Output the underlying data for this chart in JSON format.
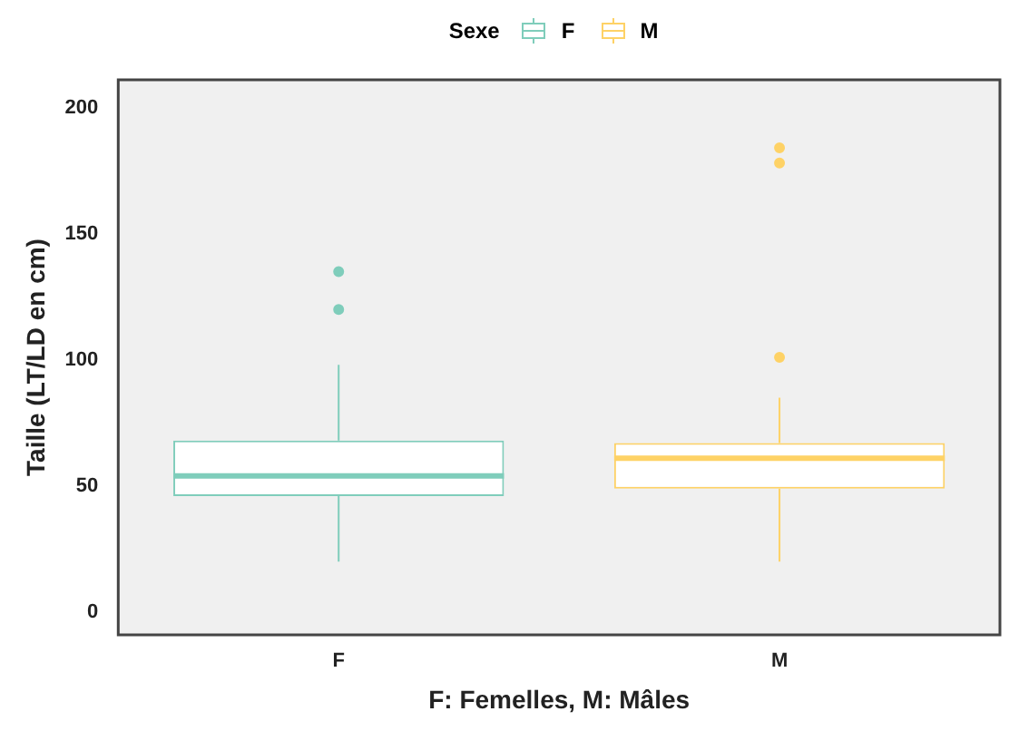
{
  "chart_data": {
    "type": "box",
    "xlabel": "F: Femelles, M: Mâles",
    "ylabel": "Taille (LT/LD en cm)",
    "legend_title": "Sexe",
    "legend": "top",
    "grid": false,
    "categories": [
      "F",
      "M"
    ],
    "ylim": [
      -9,
      211
    ],
    "yticks": [
      0,
      50,
      100,
      150,
      200
    ],
    "series": [
      {
        "name": "F",
        "color": "#7fcdbb",
        "boxes": [
          {
            "low": 20,
            "q1": 46,
            "median": 54,
            "q3": 68,
            "high": 98,
            "outliers": [
              120,
              135
            ]
          },
          null
        ]
      },
      {
        "name": "M",
        "color": "#fed266",
        "boxes": [
          null,
          {
            "low": 20,
            "q1": 49,
            "median": 61,
            "q3": 67,
            "high": 85,
            "outliers": [
              101,
              178,
              184
            ]
          }
        ]
      }
    ]
  }
}
